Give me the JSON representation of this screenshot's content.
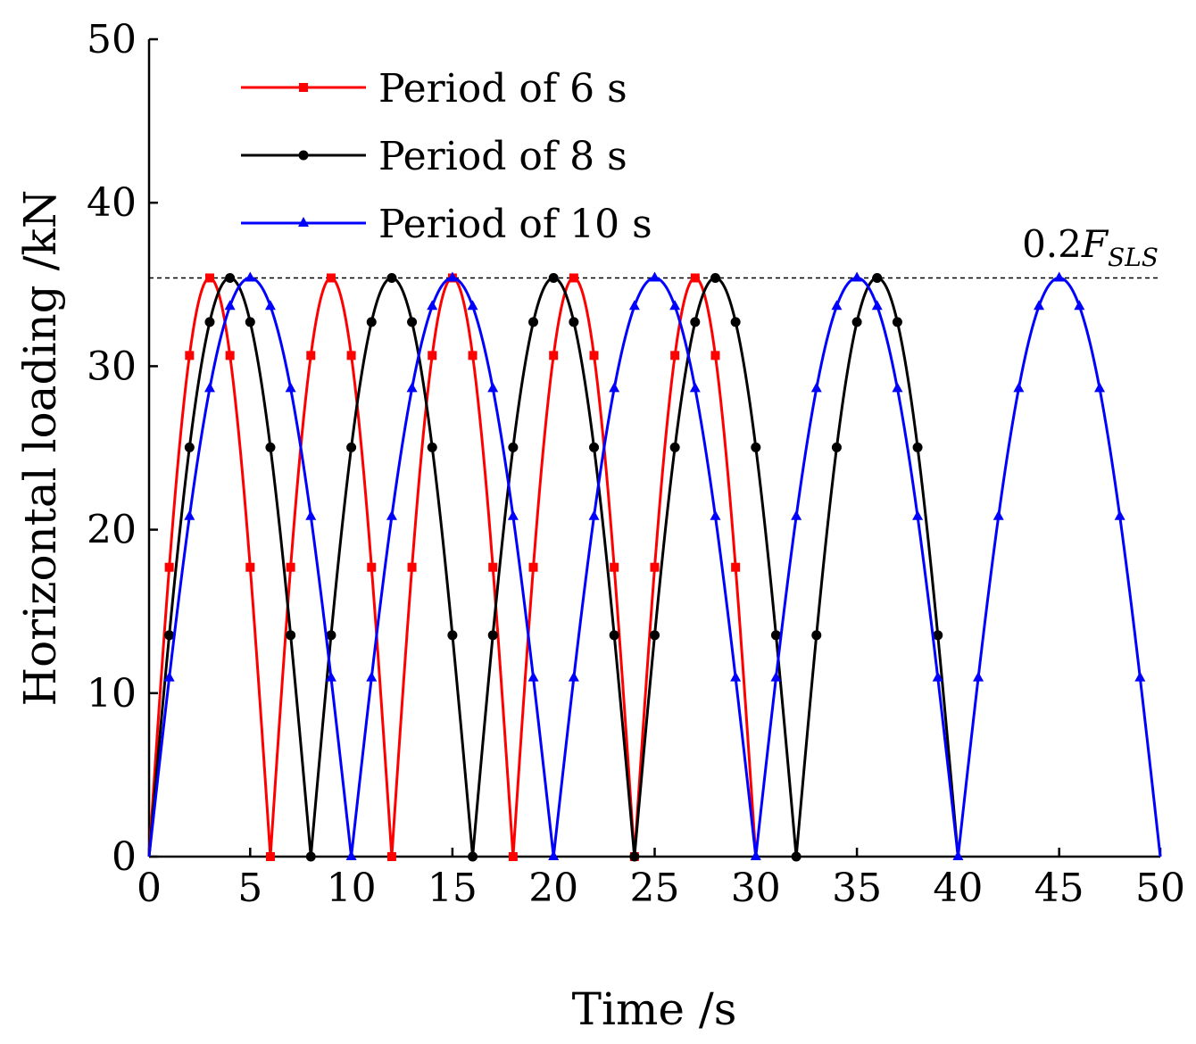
{
  "chart_data": {
    "type": "line",
    "title": "",
    "xlabel": "Time /s",
    "ylabel": "Horizontal loading /kN",
    "xlim": [
      0,
      50
    ],
    "ylim": [
      0,
      50
    ],
    "xticks": [
      "0",
      "5",
      "10",
      "15",
      "20",
      "25",
      "30",
      "35",
      "40",
      "45",
      "50"
    ],
    "yticks": [
      "0",
      "10",
      "20",
      "30",
      "40",
      "50"
    ],
    "grid": false,
    "legend_position": "top-left",
    "amplitude": 35.4,
    "reference_line": {
      "value": 35.4,
      "label_main": "0.2",
      "label_italic": "F",
      "label_sub": "SLS"
    },
    "series": [
      {
        "name": "Period of 6 s",
        "period": 6,
        "t_end": 30,
        "marker": "square",
        "color": "#ff0000",
        "marker_step": 1
      },
      {
        "name": "Period of 8 s",
        "period": 8,
        "t_end": 40,
        "marker": "circle",
        "color": "#000000",
        "marker_step": 1
      },
      {
        "name": "Period of 10 s",
        "period": 10,
        "t_end": 50,
        "marker": "triangle",
        "color": "#0000ff",
        "marker_step": 1
      }
    ]
  }
}
